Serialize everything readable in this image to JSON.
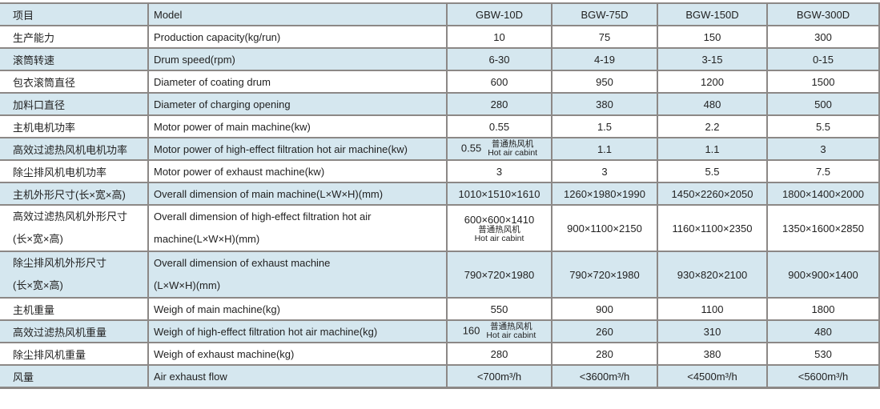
{
  "header": {
    "cn": "项目",
    "en": "Model",
    "models": [
      "GBW-10D",
      "BGW-75D",
      "BGW-150D",
      "BGW-300D"
    ]
  },
  "note": {
    "cn": "普通热风机",
    "en": "Hot air cabint"
  },
  "rows": [
    {
      "cn": "生产能力",
      "en": "Production capacity(kg/run)",
      "values": [
        "10",
        "75",
        "150",
        "300"
      ]
    },
    {
      "cn": "滚筒转速",
      "en": "Drum speed(rpm)",
      "values": [
        "6-30",
        "4-19",
        "3-15",
        "0-15"
      ]
    },
    {
      "cn": "包衣滚筒直径",
      "en": "Diameter of coating drum",
      "values": [
        "600",
        "950",
        "1200",
        "1500"
      ]
    },
    {
      "cn": "加料口直径",
      "en": "Diameter of charging opening",
      "values": [
        "280",
        "380",
        "480",
        "500"
      ]
    },
    {
      "cn": "主机电机功率",
      "en": "Motor power of main machine(kw)",
      "values": [
        "0.55",
        "1.5",
        "2.2",
        "5.5"
      ]
    },
    {
      "cn": "高效过滤热风机电机功率",
      "en": "Motor power of high-effect filtration hot air machine(kw)",
      "values": [
        "0.55",
        "1.1",
        "1.1",
        "3"
      ]
    },
    {
      "cn": "除尘排风机电机功率",
      "en": "Motor power of exhaust machine(kw)",
      "values": [
        "3",
        "3",
        "5.5",
        "7.5"
      ]
    },
    {
      "cn": "主机外形尺寸(长×宽×高)",
      "en": "Overall dimension of main machine(L×W×H)(mm)",
      "values": [
        "1010×1510×1610",
        "1260×1980×1990",
        "1450×2260×2050",
        "1800×1400×2000"
      ]
    },
    {
      "cn": "高效过滤热风机外形尺寸",
      "cn2": "(长×宽×高)",
      "en": "Overall dimension of high-effect filtration hot air",
      "en2": "machine(L×W×H)(mm)",
      "values": [
        "600×600×1410",
        "900×1100×2150",
        "1160×1100×2350",
        "1350×1600×2850"
      ]
    },
    {
      "cn": "除尘排风机外形尺寸",
      "cn2": "(长×宽×高)",
      "en": "Overall dimension of exhaust machine",
      "en2": "(L×W×H)(mm)",
      "values": [
        "790×720×1980",
        "790×720×1980",
        "930×820×2100",
        "900×900×1400"
      ]
    },
    {
      "cn": "主机重量",
      "en": "Weigh of main machine(kg)",
      "values": [
        "550",
        "900",
        "1100",
        "1800"
      ]
    },
    {
      "cn": "高效过滤热风机重量",
      "en": "Weigh of high-effect filtration hot air machine(kg)",
      "values": [
        "160",
        "260",
        "310",
        "480"
      ]
    },
    {
      "cn": "除尘排风机重量",
      "en": "Weigh of exhaust machine(kg)",
      "values": [
        "280",
        "280",
        "380",
        "530"
      ]
    },
    {
      "cn": "风量",
      "en": "Air exhaust flow",
      "values": [
        "<700m³/h",
        "<3600m³/h",
        "<4500m³/h",
        "<5600m³/h"
      ]
    }
  ],
  "colors": {
    "row_alt": "#d5e7ef",
    "border": "#8c8886"
  }
}
